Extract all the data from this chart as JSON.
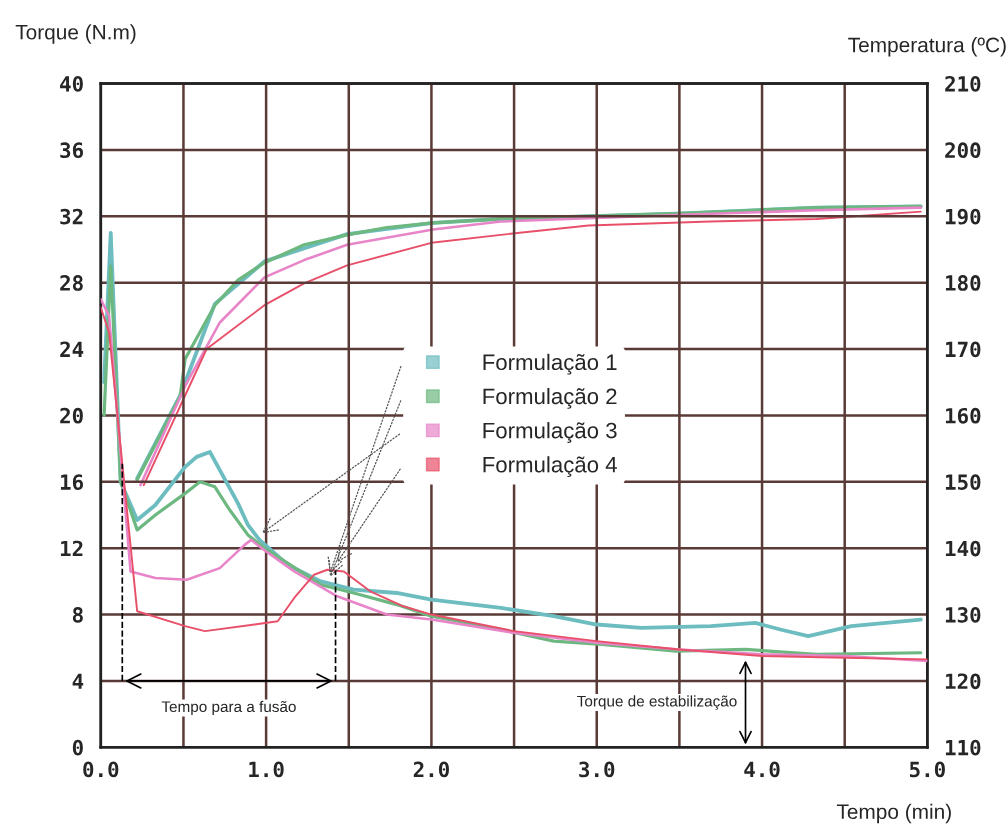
{
  "chart_data": {
    "type": "line",
    "xlabel": "Tempo (min)",
    "ylabel": "Torque (N.m)",
    "y2label": "Temperatura (ºC)",
    "xlim": [
      0,
      5
    ],
    "xticks": [
      {
        "value": 0,
        "label": "0.0"
      },
      {
        "value": 0.5,
        "label": null
      },
      {
        "value": 1,
        "label": "1.0"
      },
      {
        "value": 1.5,
        "label": null
      },
      {
        "value": 2,
        "label": "2.0"
      },
      {
        "value": 2.5,
        "label": null
      },
      {
        "value": 3,
        "label": "3.0"
      },
      {
        "value": 3.5,
        "label": null
      },
      {
        "value": 4,
        "label": "4.0"
      },
      {
        "value": 4.5,
        "label": null
      },
      {
        "value": 5,
        "label": "5.0"
      }
    ],
    "ylim": [
      0,
      40
    ],
    "yticks": [
      0,
      4,
      8,
      12,
      16,
      20,
      24,
      28,
      32,
      36,
      40
    ],
    "y2lim": [
      110,
      210
    ],
    "y2ticks": [
      110,
      120,
      130,
      140,
      150,
      160,
      170,
      180,
      190,
      200,
      210
    ],
    "grid": true,
    "legend": "center",
    "line_style": "solid",
    "marker": "none",
    "series": [
      {
        "name": "Formulação 1",
        "color": "#6cbcc0",
        "x": [
          0.02,
          0.06,
          0.12,
          0.22,
          0.33,
          0.51,
          0.58,
          0.66,
          0.72,
          0.83,
          0.89,
          0.96,
          1.13,
          1.33,
          1.53,
          1.79,
          2.0,
          2.42,
          2.74,
          3.0,
          3.27,
          3.69,
          3.96,
          4.11,
          4.28,
          4.54,
          4.96
        ],
        "values": [
          22,
          31,
          16,
          13.7,
          14.6,
          16.9,
          17.5,
          17.8,
          16.7,
          14.7,
          13.4,
          12.5,
          11.0,
          10.0,
          9.5,
          9.3,
          8.9,
          8.4,
          7.9,
          7.4,
          7.2,
          7.3,
          7.5,
          7.1,
          6.7,
          7.3,
          7.7
        ]
      },
      {
        "name": "Formulação 2",
        "color": "#6cb880",
        "x": [
          0.02,
          0.06,
          0.12,
          0.22,
          0.33,
          0.51,
          0.6,
          0.69,
          0.78,
          0.89,
          0.99,
          1.33,
          1.53,
          1.79,
          2.0,
          2.42,
          2.74,
          3.03,
          3.48,
          3.9,
          4.33,
          4.96
        ],
        "values": [
          20,
          29,
          16,
          13.1,
          14.0,
          15.3,
          16.0,
          15.7,
          14.3,
          12.8,
          12.0,
          9.8,
          9.3,
          8.6,
          7.9,
          7.1,
          6.4,
          6.2,
          5.8,
          5.9,
          5.6,
          5.7
        ]
      },
      {
        "name": "Formulação 3",
        "color": "#e884c8",
        "x": [
          0.0,
          0.05,
          0.18,
          0.33,
          0.52,
          0.72,
          0.87,
          0.91,
          1.0,
          1.17,
          1.43,
          1.73,
          2.0,
          2.5,
          3.0,
          3.5,
          4.0,
          4.5,
          5.0
        ],
        "values": [
          27,
          26,
          10.6,
          10.2,
          10.1,
          10.8,
          12.2,
          12.5,
          11.8,
          10.6,
          9.1,
          8.0,
          7.7,
          6.9,
          6.3,
          5.9,
          5.6,
          5.5,
          5.2
        ]
      },
      {
        "name": "Formulação 4",
        "color": "#e8506a",
        "x": [
          0.0,
          0.05,
          0.22,
          0.51,
          0.63,
          0.93,
          1.07,
          1.17,
          1.29,
          1.37,
          1.47,
          1.63,
          1.83,
          2.0,
          2.5,
          3.0,
          3.5,
          4.0,
          4.5,
          5.0
        ],
        "values": [
          26.5,
          25,
          8.2,
          7.3,
          7.0,
          7.4,
          7.6,
          9.0,
          10.4,
          10.7,
          10.6,
          9.4,
          8.5,
          8.0,
          7.0,
          6.4,
          5.9,
          5.5,
          5.4,
          5.3
        ]
      },
      {
        "color": "#6cbcc0",
        "axis": "y2",
        "x": [
          0.22,
          0.48,
          0.69,
          0.99,
          1.49,
          2.01,
          2.42,
          3.48,
          4.33,
          4.96
        ],
        "values": [
          150.5,
          163,
          176.8,
          183.2,
          187.3,
          189,
          189.6,
          190.4,
          191.3,
          191.5
        ]
      },
      {
        "color": "#6cb880",
        "axis": "y2",
        "x": [
          0.22,
          0.48,
          0.51,
          0.69,
          0.83,
          0.99,
          1.23,
          1.49,
          1.73,
          2.01,
          2.42,
          3.48,
          4.33,
          4.96
        ],
        "values": [
          150.3,
          162.9,
          168.5,
          176.6,
          180.4,
          183,
          185.7,
          187.2,
          188.3,
          189,
          189.6,
          190.4,
          191.3,
          191.5
        ]
      },
      {
        "color": "#e884c8",
        "axis": "y2",
        "x": [
          0.24,
          0.51,
          0.72,
          0.99,
          1.23,
          1.49,
          2.01,
          2.42,
          3.48,
          4.33,
          4.96
        ],
        "values": [
          149.5,
          164.4,
          174,
          180.8,
          183.4,
          185.7,
          188,
          189.2,
          190.2,
          190.9,
          191.3
        ]
      },
      {
        "color": "#e8506a",
        "axis": "y2",
        "x": [
          0.26,
          0.51,
          0.64,
          0.99,
          1.23,
          1.49,
          2.0,
          2.42,
          2.95,
          3.69,
          4.33,
          4.96
        ],
        "values": [
          149.5,
          163,
          170,
          176.6,
          179.9,
          182.6,
          186,
          187.2,
          188.6,
          189.2,
          189.6,
          190.7
        ]
      }
    ],
    "ref_lines": [
      {
        "axis": "x",
        "value": 0.13,
        "line_style": "dashed"
      },
      {
        "axis": "x",
        "value": 1.42,
        "label": "Tempo para a fusão",
        "line_style": "dashed"
      }
    ],
    "annotations": [
      {
        "text": "Torque de estabilização",
        "x": 3.9,
        "y": 5.4
      }
    ]
  }
}
